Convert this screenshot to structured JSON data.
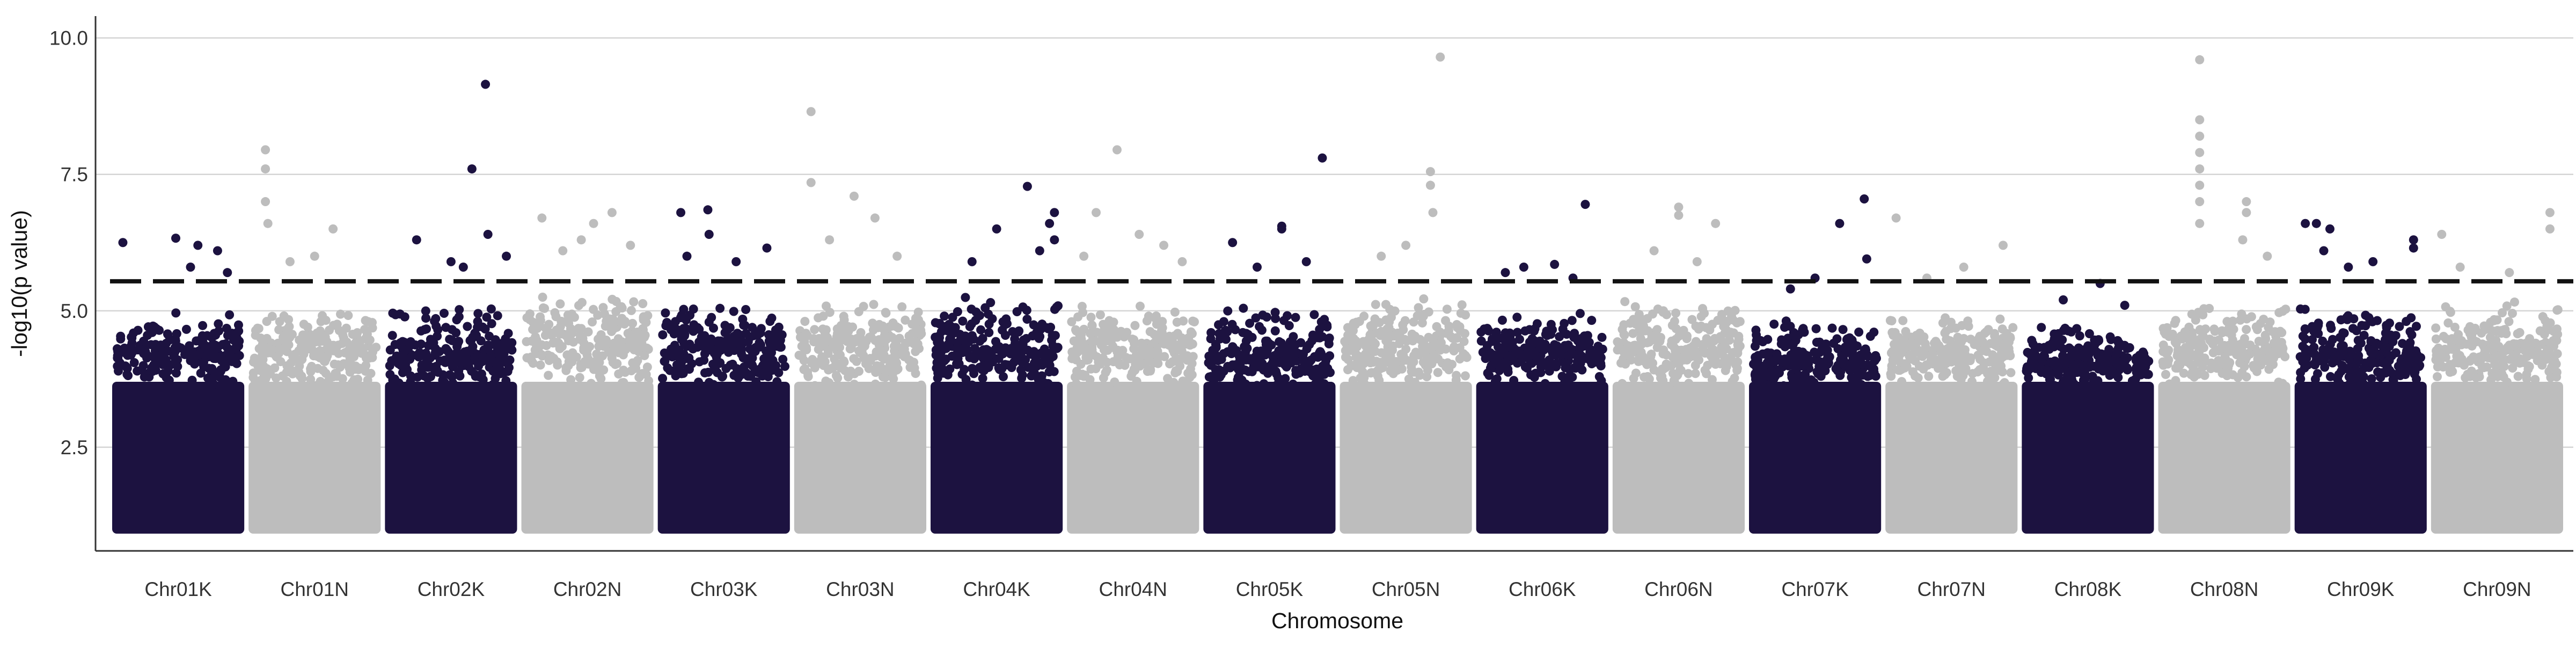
{
  "chart_data": {
    "type": "scatter",
    "subtype": "manhattan",
    "title": "",
    "xlabel": "Chromosome",
    "ylabel": "-log10(p value)",
    "ylim": [
      0.6,
      10.4
    ],
    "yticks": [
      2.5,
      5.0,
      7.5,
      10.0
    ],
    "ytick_labels": [
      "2.5",
      "5.0",
      "7.5",
      "10.0"
    ],
    "grid": "horizontal major lines",
    "legend": "none",
    "threshold": {
      "value": 5.54,
      "style": "dashed",
      "color": "#111111"
    },
    "series_colors": {
      "odd": "#1c1240",
      "even": "#bdbdbd"
    },
    "categories": [
      "Chr01K",
      "Chr01N",
      "Chr02K",
      "Chr02N",
      "Chr03K",
      "Chr03N",
      "Chr04K",
      "Chr04N",
      "Chr05K",
      "Chr05N",
      "Chr06K",
      "Chr06N",
      "Chr07K",
      "Chr07N",
      "Chr08K",
      "Chr08N",
      "Chr09K",
      "Chr09N"
    ],
    "chromosomes": [
      {
        "name": "Chr01K",
        "bulk_max": 4.3,
        "band_max": 5.0,
        "top_points": [
          [
            0.05,
            6.25
          ],
          [
            0.48,
            6.33
          ],
          [
            0.66,
            6.2
          ],
          [
            0.82,
            6.1
          ],
          [
            0.6,
            5.8
          ],
          [
            0.9,
            5.7
          ]
        ]
      },
      {
        "name": "Chr01N",
        "bulk_max": 4.4,
        "band_max": 5.1,
        "top_points": [
          [
            0.1,
            7.95
          ],
          [
            0.1,
            7.6
          ],
          [
            0.1,
            7.0
          ],
          [
            0.12,
            6.6
          ],
          [
            0.65,
            6.5
          ],
          [
            0.5,
            6.0
          ],
          [
            0.3,
            5.9
          ]
        ]
      },
      {
        "name": "Chr02K",
        "bulk_max": 4.2,
        "band_max": 5.2,
        "top_points": [
          [
            0.78,
            9.15
          ],
          [
            0.67,
            7.6
          ],
          [
            0.8,
            6.4
          ],
          [
            0.22,
            6.3
          ],
          [
            0.95,
            6.0
          ],
          [
            0.5,
            5.9
          ],
          [
            0.6,
            5.8
          ]
        ]
      },
      {
        "name": "Chr02N",
        "bulk_max": 4.6,
        "band_max": 5.3,
        "top_points": [
          [
            0.13,
            6.7
          ],
          [
            0.55,
            6.6
          ],
          [
            0.7,
            6.8
          ],
          [
            0.85,
            6.2
          ],
          [
            0.3,
            6.1
          ],
          [
            0.45,
            6.3
          ]
        ]
      },
      {
        "name": "Chr03K",
        "bulk_max": 4.4,
        "band_max": 5.2,
        "top_points": [
          [
            0.15,
            6.8
          ],
          [
            0.38,
            6.4
          ],
          [
            0.37,
            6.85
          ],
          [
            0.85,
            6.15
          ],
          [
            0.6,
            5.9
          ],
          [
            0.2,
            6.0
          ]
        ]
      },
      {
        "name": "Chr03N",
        "bulk_max": 4.5,
        "band_max": 5.2,
        "top_points": [
          [
            0.1,
            8.65
          ],
          [
            0.1,
            7.35
          ],
          [
            0.45,
            7.1
          ],
          [
            0.62,
            6.7
          ],
          [
            0.25,
            6.3
          ],
          [
            0.8,
            6.0
          ]
        ]
      },
      {
        "name": "Chr04K",
        "bulk_max": 4.3,
        "band_max": 5.4,
        "top_points": [
          [
            0.75,
            7.28
          ],
          [
            0.5,
            6.5
          ],
          [
            0.97,
            6.8
          ],
          [
            0.93,
            6.6
          ],
          [
            0.97,
            6.3
          ],
          [
            0.3,
            5.9
          ],
          [
            0.85,
            6.1
          ]
        ]
      },
      {
        "name": "Chr04N",
        "bulk_max": 4.4,
        "band_max": 5.2,
        "top_points": [
          [
            0.37,
            7.95
          ],
          [
            0.2,
            6.8
          ],
          [
            0.55,
            6.4
          ],
          [
            0.75,
            6.2
          ],
          [
            0.1,
            6.0
          ],
          [
            0.9,
            5.9
          ]
        ]
      },
      {
        "name": "Chr05K",
        "bulk_max": 4.2,
        "band_max": 5.1,
        "top_points": [
          [
            0.93,
            7.8
          ],
          [
            0.6,
            6.55
          ],
          [
            0.6,
            6.5
          ],
          [
            0.2,
            6.25
          ],
          [
            0.8,
            5.9
          ],
          [
            0.4,
            5.8
          ]
        ]
      },
      {
        "name": "Chr05N",
        "bulk_max": 4.5,
        "band_max": 5.3,
        "top_points": [
          [
            0.78,
            9.65
          ],
          [
            0.7,
            7.55
          ],
          [
            0.7,
            7.3
          ],
          [
            0.72,
            6.8
          ],
          [
            0.5,
            6.2
          ],
          [
            0.3,
            6.0
          ]
        ]
      },
      {
        "name": "Chr06K",
        "bulk_max": 4.3,
        "band_max": 5.0,
        "top_points": [
          [
            0.85,
            6.95
          ],
          [
            0.35,
            5.8
          ],
          [
            0.6,
            5.85
          ],
          [
            0.2,
            5.7
          ],
          [
            0.75,
            5.6
          ]
        ]
      },
      {
        "name": "Chr06N",
        "bulk_max": 4.4,
        "band_max": 5.2,
        "top_points": [
          [
            0.5,
            6.9
          ],
          [
            0.5,
            6.75
          ],
          [
            0.8,
            6.6
          ],
          [
            0.3,
            6.1
          ],
          [
            0.65,
            5.9
          ]
        ]
      },
      {
        "name": "Chr07K",
        "bulk_max": 4.1,
        "band_max": 4.9,
        "top_points": [
          [
            0.9,
            7.05
          ],
          [
            0.7,
            6.6
          ],
          [
            0.92,
            5.95
          ],
          [
            0.5,
            5.6
          ],
          [
            0.3,
            5.4
          ]
        ]
      },
      {
        "name": "Chr07N",
        "bulk_max": 4.3,
        "band_max": 5.0,
        "top_points": [
          [
            0.92,
            6.2
          ],
          [
            0.05,
            6.7
          ],
          [
            0.6,
            5.8
          ],
          [
            0.3,
            5.6
          ]
        ]
      },
      {
        "name": "Chr08K",
        "bulk_max": 4.1,
        "band_max": 4.8,
        "top_points": [
          [
            0.6,
            5.5
          ],
          [
            0.3,
            5.2
          ],
          [
            0.8,
            5.1
          ]
        ]
      },
      {
        "name": "Chr08N",
        "bulk_max": 4.4,
        "band_max": 5.2,
        "top_points": [
          [
            0.3,
            9.6
          ],
          [
            0.3,
            8.5
          ],
          [
            0.3,
            8.2
          ],
          [
            0.3,
            7.9
          ],
          [
            0.3,
            7.6
          ],
          [
            0.3,
            7.3
          ],
          [
            0.3,
            7.0
          ],
          [
            0.68,
            7.0
          ],
          [
            0.68,
            6.8
          ],
          [
            0.3,
            6.6
          ],
          [
            0.65,
            6.3
          ],
          [
            0.85,
            6.0
          ]
        ]
      },
      {
        "name": "Chr09K",
        "bulk_max": 4.3,
        "band_max": 5.2,
        "top_points": [
          [
            0.05,
            6.6
          ],
          [
            0.14,
            6.6
          ],
          [
            0.25,
            6.5
          ],
          [
            0.2,
            6.1
          ],
          [
            0.93,
            6.3
          ],
          [
            0.93,
            6.15
          ],
          [
            0.6,
            5.9
          ],
          [
            0.4,
            5.8
          ]
        ]
      },
      {
        "name": "Chr09N",
        "bulk_max": 4.4,
        "band_max": 5.2,
        "top_points": [
          [
            0.93,
            6.8
          ],
          [
            0.93,
            6.5
          ],
          [
            0.05,
            6.4
          ],
          [
            0.2,
            5.8
          ],
          [
            0.6,
            5.7
          ]
        ]
      }
    ]
  }
}
